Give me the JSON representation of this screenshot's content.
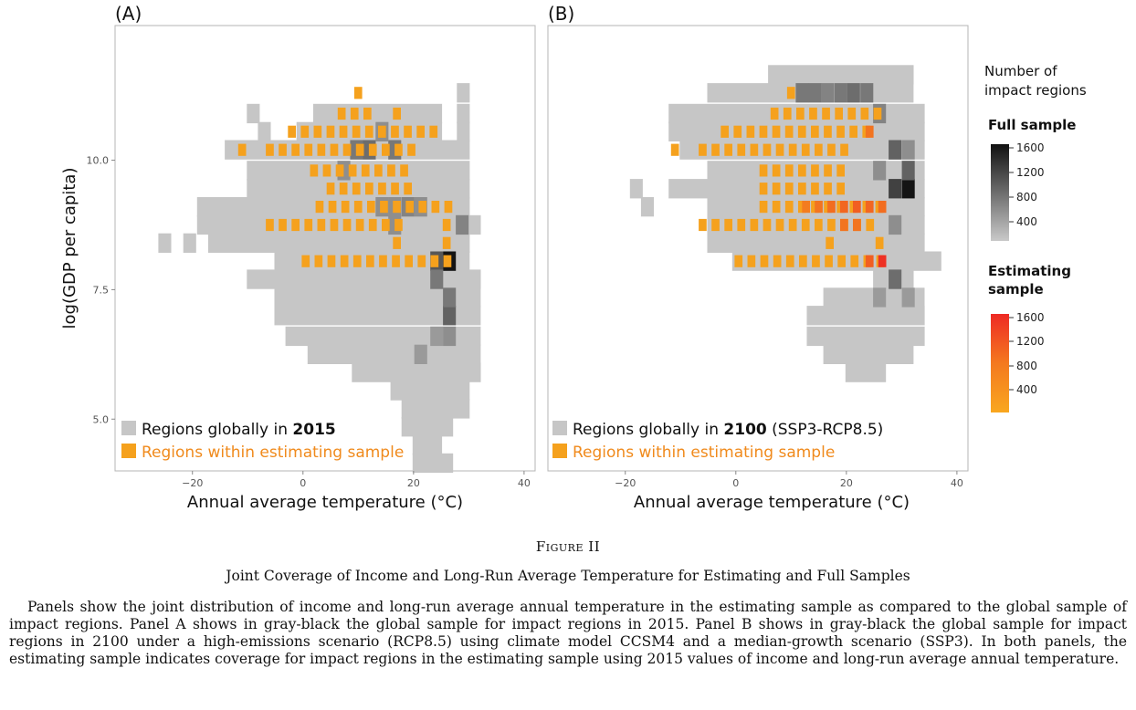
{
  "colors": {
    "gray": "#c6c6c6",
    "orange": "#f5a11d",
    "black": "#1a1a1a",
    "red": "#ee2e24"
  },
  "chart_data": [
    {
      "type": "heatmap",
      "panel_label": "(A)",
      "xlabel": "Annual average temperature (°C)",
      "ylabel": "log(GDP per capita)",
      "xlim": [
        -34,
        42
      ],
      "ylim": [
        4.0,
        12.6
      ],
      "x_ticks": [
        "−20",
        "0",
        "20",
        "40"
      ],
      "x_tick_values": [
        -20,
        0,
        20,
        40
      ],
      "y_ticks": [
        "10.0",
        "7.5",
        "5.0"
      ],
      "y_tick_values": [
        10.0,
        7.5,
        5.0
      ],
      "bin_width_x": 2.33,
      "bin_height_y": 0.375,
      "legend_gray_prefix": "Regions globally in ",
      "legend_gray_bold": "2015",
      "legend_gray_suffix": "",
      "legend_orange": "Regions within estimating sample",
      "full_sample_rows": [
        {
          "y": 11.3,
          "x": [
            [
              29.0,
              29.0
            ]
          ]
        },
        {
          "y": 10.9,
          "x": [
            [
              -9.0,
              -9.0
            ],
            [
              3.0,
              24.0
            ],
            [
              29.0,
              29.0
            ]
          ]
        },
        {
          "y": 10.55,
          "x": [
            [
              -7.0,
              -7.0
            ],
            [
              0.0,
              24.0
            ],
            [
              29.0,
              29.0
            ]
          ]
        },
        {
          "y": 10.2,
          "x": [
            [
              -13.0,
              29.0
            ]
          ]
        },
        {
          "y": 9.8,
          "x": [
            [
              -9.0,
              29.0
            ]
          ]
        },
        {
          "y": 9.45,
          "x": [
            [
              -9.0,
              29.0
            ]
          ]
        },
        {
          "y": 9.1,
          "x": [
            [
              -18.0,
              29.0
            ]
          ]
        },
        {
          "y": 8.75,
          "x": [
            [
              -18.0,
              31.0
            ]
          ]
        },
        {
          "y": 8.4,
          "x": [
            [
              -25.0,
              -25.0
            ],
            [
              -20.5,
              -20.5
            ],
            [
              -16.0,
              29.0
            ]
          ]
        },
        {
          "y": 8.05,
          "x": [
            [
              -4.0,
              29.0
            ]
          ]
        },
        {
          "y": 7.7,
          "x": [
            [
              -9.0,
              31.0
            ]
          ]
        },
        {
          "y": 7.35,
          "x": [
            [
              -4.0,
              31.0
            ]
          ]
        },
        {
          "y": 7.0,
          "x": [
            [
              -4.0,
              31.0
            ]
          ]
        },
        {
          "y": 6.6,
          "x": [
            [
              -2.0,
              31.0
            ]
          ]
        },
        {
          "y": 6.25,
          "x": [
            [
              2.0,
              31.0
            ]
          ]
        },
        {
          "y": 5.9,
          "x": [
            [
              10.0,
              31.0
            ]
          ]
        },
        {
          "y": 5.55,
          "x": [
            [
              17.0,
              29.0
            ]
          ]
        },
        {
          "y": 5.2,
          "x": [
            [
              19.0,
              29.0
            ]
          ]
        },
        {
          "y": 4.85,
          "x": [
            [
              19.0,
              26.0
            ]
          ]
        },
        {
          "y": 4.5,
          "x": [
            [
              21.0,
              24.0
            ]
          ]
        },
        {
          "y": 4.15,
          "x": [
            [
              21.0,
              26.0
            ]
          ]
        }
      ],
      "full_sample_dark": [
        {
          "x": 26.5,
          "y": 8.05,
          "v": 1600
        },
        {
          "x": 24.2,
          "y": 8.05,
          "v": 1000
        },
        {
          "x": 24.2,
          "y": 7.7,
          "v": 700
        },
        {
          "x": 26.5,
          "y": 7.0,
          "v": 900
        },
        {
          "x": 26.5,
          "y": 7.35,
          "v": 700
        },
        {
          "x": 28.8,
          "y": 8.75,
          "v": 600
        },
        {
          "x": 26.5,
          "y": 6.6,
          "v": 500
        },
        {
          "x": 12.0,
          "y": 10.2,
          "v": 800
        },
        {
          "x": 16.6,
          "y": 10.2,
          "v": 700
        },
        {
          "x": 9.7,
          "y": 10.2,
          "v": 700
        },
        {
          "x": 14.3,
          "y": 10.55,
          "v": 500
        },
        {
          "x": 19.0,
          "y": 9.1,
          "v": 600
        },
        {
          "x": 16.6,
          "y": 9.1,
          "v": 500
        },
        {
          "x": 21.3,
          "y": 9.1,
          "v": 500
        },
        {
          "x": 14.3,
          "y": 9.1,
          "v": 500
        },
        {
          "x": 16.6,
          "y": 8.75,
          "v": 500
        },
        {
          "x": 7.4,
          "y": 9.8,
          "v": 500
        },
        {
          "x": 21.3,
          "y": 6.25,
          "v": 400
        },
        {
          "x": 24.2,
          "y": 6.6,
          "v": 400
        }
      ],
      "estimating_rows": [
        {
          "y": 11.3,
          "x": [
            [
              10.0,
              10.0
            ]
          ]
        },
        {
          "y": 10.9,
          "x": [
            [
              7.0,
              12.0
            ],
            [
              17.0,
              19.0
            ]
          ]
        },
        {
          "y": 10.55,
          "x": [
            [
              -2.0,
              24.0
            ]
          ]
        },
        {
          "y": 10.2,
          "x": [
            [
              -11.0,
              -11.0
            ],
            [
              -6.0,
              21.0
            ]
          ]
        },
        {
          "y": 9.8,
          "x": [
            [
              2.0,
              19.0
            ]
          ]
        },
        {
          "y": 9.45,
          "x": [
            [
              5.0,
              19.0
            ]
          ]
        },
        {
          "y": 9.1,
          "x": [
            [
              3.0,
              28.0
            ]
          ]
        },
        {
          "y": 8.75,
          "x": [
            [
              -6.0,
              19.0
            ],
            [
              26.0,
              26.0
            ]
          ]
        },
        {
          "y": 8.4,
          "x": [
            [
              17.0,
              17.0
            ],
            [
              26.0,
              26.0
            ]
          ]
        },
        {
          "y": 8.05,
          "x": [
            [
              0.5,
              28.0
            ]
          ]
        }
      ]
    },
    {
      "type": "heatmap",
      "panel_label": "(B)",
      "xlabel": "Annual average temperature (°C)",
      "ylabel": "",
      "xlim": [
        -34,
        42
      ],
      "ylim": [
        4.0,
        12.6
      ],
      "x_ticks": [
        "−20",
        "0",
        "20",
        "40"
      ],
      "x_tick_values": [
        -20,
        0,
        20,
        40
      ],
      "y_ticks": [],
      "y_tick_values": [],
      "bin_width_x": 2.33,
      "bin_height_y": 0.375,
      "legend_gray_prefix": "Regions globally in ",
      "legend_gray_bold": "2100",
      "legend_gray_suffix": " (SSP3-RCP8.5)",
      "legend_orange": "Regions within estimating sample",
      "full_sample_rows": [
        {
          "y": 11.65,
          "x": [
            [
              7.0,
              31.0
            ]
          ]
        },
        {
          "y": 11.3,
          "x": [
            [
              -4.0,
              31.0
            ]
          ]
        },
        {
          "y": 10.9,
          "x": [
            [
              -11.0,
              33.0
            ]
          ]
        },
        {
          "y": 10.55,
          "x": [
            [
              -11.0,
              33.0
            ]
          ]
        },
        {
          "y": 10.2,
          "x": [
            [
              -9.0,
              33.0
            ]
          ]
        },
        {
          "y": 9.8,
          "x": [
            [
              -4.0,
              33.0
            ]
          ]
        },
        {
          "y": 9.45,
          "x": [
            [
              -18.0,
              -18.0
            ],
            [
              -11.0,
              33.0
            ]
          ]
        },
        {
          "y": 9.1,
          "x": [
            [
              -16.0,
              -16.0
            ],
            [
              -4.0,
              33.0
            ]
          ]
        },
        {
          "y": 8.75,
          "x": [
            [
              -4.0,
              33.0
            ]
          ]
        },
        {
          "y": 8.4,
          "x": [
            [
              -4.0,
              33.0
            ]
          ]
        },
        {
          "y": 8.05,
          "x": [
            [
              0.5,
              36.0
            ]
          ]
        },
        {
          "y": 7.7,
          "x": [
            [
              26.0,
              31.0
            ]
          ]
        },
        {
          "y": 7.35,
          "x": [
            [
              17.0,
              33.0
            ]
          ]
        },
        {
          "y": 7.0,
          "x": [
            [
              14.0,
              33.0
            ]
          ]
        },
        {
          "y": 6.6,
          "x": [
            [
              14.0,
              33.0
            ]
          ]
        },
        {
          "y": 6.25,
          "x": [
            [
              17.0,
              31.0
            ]
          ]
        },
        {
          "y": 5.9,
          "x": [
            [
              21.0,
              26.0
            ]
          ]
        }
      ],
      "full_sample_dark": [
        {
          "x": 31.2,
          "y": 9.45,
          "v": 1600
        },
        {
          "x": 28.8,
          "y": 9.45,
          "v": 1200
        },
        {
          "x": 31.2,
          "y": 9.8,
          "v": 900
        },
        {
          "x": 28.8,
          "y": 10.2,
          "v": 900
        },
        {
          "x": 28.8,
          "y": 7.7,
          "v": 800
        },
        {
          "x": 12.0,
          "y": 11.3,
          "v": 700
        },
        {
          "x": 14.3,
          "y": 11.3,
          "v": 700
        },
        {
          "x": 21.3,
          "y": 11.3,
          "v": 800
        },
        {
          "x": 19.0,
          "y": 11.3,
          "v": 700
        },
        {
          "x": 16.6,
          "y": 11.3,
          "v": 600
        },
        {
          "x": 23.7,
          "y": 11.3,
          "v": 700
        },
        {
          "x": 26.0,
          "y": 10.9,
          "v": 600
        },
        {
          "x": 31.2,
          "y": 10.2,
          "v": 500
        },
        {
          "x": 26.0,
          "y": 9.8,
          "v": 500
        },
        {
          "x": 28.8,
          "y": 8.75,
          "v": 500
        },
        {
          "x": 31.2,
          "y": 7.35,
          "v": 400
        },
        {
          "x": 26.0,
          "y": 7.35,
          "v": 400
        }
      ],
      "estimating_rows": [
        {
          "y": 11.3,
          "x": [
            [
              10.0,
              10.0
            ]
          ]
        },
        {
          "y": 10.9,
          "x": [
            [
              7.0,
              26.0
            ]
          ]
        },
        {
          "y": 10.55,
          "x": [
            [
              -2.0,
              24.0
            ]
          ]
        },
        {
          "y": 10.2,
          "x": [
            [
              -11.0,
              -11.0
            ],
            [
              -6.0,
              21.0
            ]
          ]
        },
        {
          "y": 9.8,
          "x": [
            [
              5.0,
              19.0
            ]
          ]
        },
        {
          "y": 9.45,
          "x": [
            [
              5.0,
              19.0
            ]
          ]
        },
        {
          "y": 9.1,
          "x": [
            [
              5.0,
              28.0
            ]
          ]
        },
        {
          "y": 8.75,
          "x": [
            [
              -6.0,
              26.0
            ]
          ]
        },
        {
          "y": 8.4,
          "x": [
            [
              17.0,
              17.0
            ],
            [
              26.0,
              26.0
            ]
          ]
        },
        {
          "y": 8.05,
          "x": [
            [
              0.5,
              28.0
            ]
          ]
        }
      ],
      "estimating_red": [
        {
          "x": 26.5,
          "y": 8.05,
          "v": 1500
        },
        {
          "x": 24.2,
          "y": 8.05,
          "v": 900
        },
        {
          "x": 21.9,
          "y": 9.1,
          "v": 900
        },
        {
          "x": 19.6,
          "y": 9.1,
          "v": 800
        },
        {
          "x": 24.2,
          "y": 9.1,
          "v": 800
        },
        {
          "x": 17.3,
          "y": 9.1,
          "v": 700
        },
        {
          "x": 26.5,
          "y": 9.1,
          "v": 700
        },
        {
          "x": 21.9,
          "y": 8.75,
          "v": 600
        },
        {
          "x": 24.2,
          "y": 10.55,
          "v": 600
        },
        {
          "x": 15.0,
          "y": 9.1,
          "v": 600
        },
        {
          "x": 19.6,
          "y": 8.75,
          "v": 600
        },
        {
          "x": 12.7,
          "y": 9.1,
          "v": 500
        }
      ]
    }
  ],
  "legend": {
    "title_line1": "Number of",
    "title_line2": "impact regions",
    "full_label": "Full sample",
    "full_ticks": [
      "1600",
      "1200",
      "800",
      "400"
    ],
    "est_label_line1": "Estimating",
    "est_label_line2": "sample",
    "est_ticks": [
      "1600",
      "1200",
      "800",
      "400"
    ]
  },
  "caption": {
    "figure_label": "Figure II",
    "title": "Joint Coverage of Income and Long-Run Average Temperature for Estimating and Full Samples",
    "description": "Panels show the joint distribution of income and long-run average annual temperature in the estimating sample as compared to the global sample of impact regions. Panel A shows in gray-black the global sample for impact regions in 2015. Panel B shows in gray-black the global sample for impact regions in 2100 under a high-emissions scenario (RCP8.5) using climate model CCSM4 and a median-growth scenario (SSP3). In both panels, the estimating sample indicates coverage for impact regions in the estimating sample using 2015 values of income and long-run average annual temperature."
  }
}
